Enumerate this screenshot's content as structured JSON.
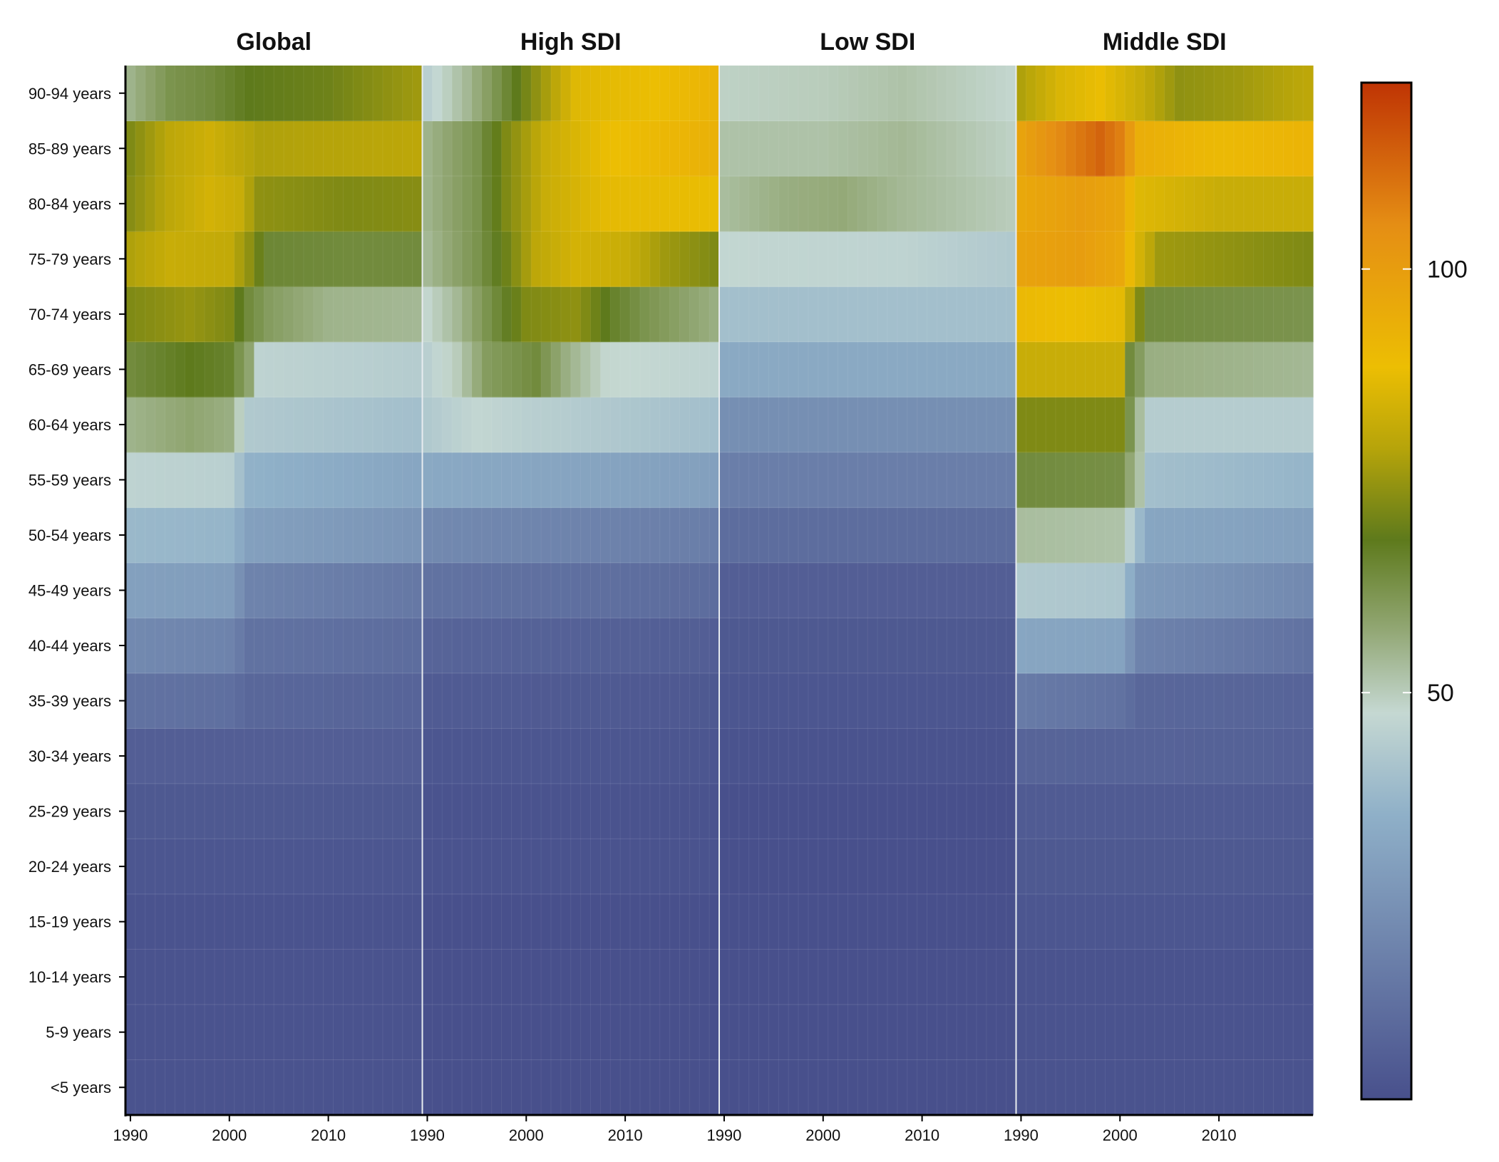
{
  "chart_data": {
    "type": "heatmap",
    "title": "",
    "xlabel": "",
    "ylabel": "",
    "facets": [
      "Global",
      "High SDI",
      "Low SDI",
      "Middle SDI"
    ],
    "x_ticks": [
      1990,
      2000,
      2010
    ],
    "x_range": [
      1990,
      2019
    ],
    "y_categories": [
      "<5 years",
      "5-9 years",
      "10-14 years",
      "15-19 years",
      "20-24 years",
      "25-29 years",
      "30-34 years",
      "35-39 years",
      "40-44 years",
      "45-49 years",
      "50-54 years",
      "55-59 years",
      "60-64 years",
      "65-69 years",
      "70-74 years",
      "75-79 years",
      "80-84 years",
      "85-89 years",
      "90-94 years"
    ],
    "colorbar": {
      "ticks": [
        50,
        100
      ],
      "range": [
        2,
        122
      ],
      "colors": [
        "#48508c",
        "#8fb0c8",
        "#c5d8d2",
        "#93a876",
        "#5e7a1c",
        "#b6a40a",
        "#ecbe03",
        "#e58e14",
        "#bf3404"
      ],
      "stops": [
        0.0,
        0.28,
        0.38,
        0.46,
        0.55,
        0.64,
        0.72,
        0.86,
        1.0
      ]
    },
    "cell_values": {
      "Global": {
        "<5 years": [
          [
            1990,
            3
          ],
          [
            2019,
            3
          ]
        ],
        "5-9 years": [
          [
            1990,
            3
          ],
          [
            2019,
            3
          ]
        ],
        "10-14 years": [
          [
            1990,
            3
          ],
          [
            2019,
            3
          ]
        ],
        "15-19 years": [
          [
            1990,
            3
          ],
          [
            2019,
            3
          ]
        ],
        "20-24 years": [
          [
            1990,
            4
          ],
          [
            2019,
            4
          ]
        ],
        "25-29 years": [
          [
            1990,
            5
          ],
          [
            2019,
            5
          ]
        ],
        "30-34 years": [
          [
            1990,
            7
          ],
          [
            2019,
            7
          ]
        ],
        "35-39 years": [
          [
            1990,
            14
          ],
          [
            2000,
            13
          ],
          [
            2002,
            10
          ],
          [
            2019,
            9
          ]
        ],
        "40-44 years": [
          [
            1990,
            22
          ],
          [
            2000,
            20
          ],
          [
            2002,
            14
          ],
          [
            2019,
            12
          ]
        ],
        "45-49 years": [
          [
            1990,
            30
          ],
          [
            2000,
            29
          ],
          [
            2002,
            20
          ],
          [
            2019,
            16
          ]
        ],
        "50-54 years": [
          [
            1990,
            38
          ],
          [
            2000,
            37
          ],
          [
            2002,
            30
          ],
          [
            2019,
            26
          ]
        ],
        "55-59 years": [
          [
            1990,
            46
          ],
          [
            2000,
            45
          ],
          [
            2002,
            36
          ],
          [
            2019,
            32
          ]
        ],
        "60-64 years": [
          [
            1990,
            55
          ],
          [
            1996,
            58
          ],
          [
            2000,
            56
          ],
          [
            2002,
            43
          ],
          [
            2019,
            40
          ]
        ],
        "65-69 years": [
          [
            1990,
            64
          ],
          [
            1996,
            68
          ],
          [
            2000,
            66
          ],
          [
            2002,
            58
          ],
          [
            2003,
            46
          ],
          [
            2019,
            44
          ]
        ],
        "70-74 years": [
          [
            1990,
            72
          ],
          [
            1996,
            75
          ],
          [
            2000,
            72
          ],
          [
            2002,
            64
          ],
          [
            2004,
            60
          ],
          [
            2010,
            55
          ],
          [
            2019,
            54
          ]
        ],
        "75-79 years": [
          [
            1990,
            78
          ],
          [
            1994,
            82
          ],
          [
            2000,
            81
          ],
          [
            2002,
            74
          ],
          [
            2004,
            65
          ],
          [
            2012,
            64
          ],
          [
            2019,
            64
          ]
        ],
        "80-84 years": [
          [
            1990,
            73
          ],
          [
            1994,
            80
          ],
          [
            1998,
            84
          ],
          [
            2001,
            82
          ],
          [
            2003,
            74
          ],
          [
            2012,
            72
          ],
          [
            2019,
            73
          ]
        ],
        "85-89 years": [
          [
            1990,
            72
          ],
          [
            1994,
            80
          ],
          [
            1998,
            83
          ],
          [
            2003,
            78
          ],
          [
            2012,
            79
          ],
          [
            2019,
            80
          ]
        ],
        "90-94 years": [
          [
            1990,
            55
          ],
          [
            1994,
            62
          ],
          [
            1998,
            64
          ],
          [
            2002,
            68
          ],
          [
            2010,
            70
          ],
          [
            2019,
            76
          ]
        ]
      },
      "High SDI": {
        "<5 years": [
          [
            1990,
            2
          ],
          [
            2019,
            2
          ]
        ],
        "5-9 years": [
          [
            1990,
            2
          ],
          [
            2019,
            2
          ]
        ],
        "10-14 years": [
          [
            1990,
            2
          ],
          [
            2019,
            2
          ]
        ],
        "15-19 years": [
          [
            1990,
            2
          ],
          [
            2019,
            2
          ]
        ],
        "20-24 years": [
          [
            1990,
            3
          ],
          [
            2019,
            3
          ]
        ],
        "25-29 years": [
          [
            1990,
            3
          ],
          [
            2019,
            3
          ]
        ],
        "30-34 years": [
          [
            1990,
            4
          ],
          [
            2019,
            4
          ]
        ],
        "35-39 years": [
          [
            1990,
            6
          ],
          [
            2019,
            5
          ]
        ],
        "40-44 years": [
          [
            1990,
            9
          ],
          [
            2019,
            7
          ]
        ],
        "45-49 years": [
          [
            1990,
            14
          ],
          [
            2019,
            12
          ]
        ],
        "50-54 years": [
          [
            1990,
            22
          ],
          [
            2019,
            18
          ]
        ],
        "55-59 years": [
          [
            1990,
            33
          ],
          [
            2019,
            30
          ]
        ],
        "60-64 years": [
          [
            1990,
            43
          ],
          [
            1995,
            47
          ],
          [
            2000,
            45
          ],
          [
            2019,
            40
          ]
        ],
        "65-69 years": [
          [
            1990,
            45
          ],
          [
            1993,
            50
          ],
          [
            1996,
            60
          ],
          [
            2001,
            64
          ],
          [
            2004,
            56
          ],
          [
            2008,
            48
          ],
          [
            2019,
            46
          ]
        ],
        "70-74 years": [
          [
            1990,
            48
          ],
          [
            1993,
            54
          ],
          [
            1996,
            62
          ],
          [
            2000,
            72
          ],
          [
            2005,
            74
          ],
          [
            2009,
            66
          ],
          [
            2012,
            62
          ],
          [
            2019,
            56
          ]
        ],
        "75-79 years": [
          [
            1990,
            54
          ],
          [
            1995,
            62
          ],
          [
            1998,
            70
          ],
          [
            2001,
            80
          ],
          [
            2005,
            84
          ],
          [
            2010,
            82
          ],
          [
            2014,
            76
          ],
          [
            2019,
            72
          ]
        ],
        "80-84 years": [
          [
            1990,
            55
          ],
          [
            1995,
            62
          ],
          [
            1998,
            72
          ],
          [
            2002,
            82
          ],
          [
            2008,
            87
          ],
          [
            2019,
            88
          ]
        ],
        "85-89 years": [
          [
            1990,
            55
          ],
          [
            1995,
            62
          ],
          [
            1998,
            72
          ],
          [
            2002,
            82
          ],
          [
            2008,
            88
          ],
          [
            2019,
            93
          ]
        ],
        "90-94 years": [
          [
            1990,
            45
          ],
          [
            1994,
            54
          ],
          [
            1997,
            62
          ],
          [
            2001,
            74
          ],
          [
            2005,
            86
          ],
          [
            2012,
            88
          ],
          [
            2019,
            92
          ]
        ]
      },
      "Low SDI": {
        "<5 years": [
          [
            1990,
            2
          ],
          [
            2019,
            2
          ]
        ],
        "5-9 years": [
          [
            1990,
            2
          ],
          [
            2019,
            2
          ]
        ],
        "10-14 years": [
          [
            1990,
            2
          ],
          [
            2019,
            2
          ]
        ],
        "15-19 years": [
          [
            1990,
            2
          ],
          [
            2019,
            2
          ]
        ],
        "20-24 years": [
          [
            1990,
            2
          ],
          [
            2019,
            2
          ]
        ],
        "25-29 years": [
          [
            1990,
            2
          ],
          [
            2019,
            2
          ]
        ],
        "30-34 years": [
          [
            1990,
            3
          ],
          [
            2019,
            3
          ]
        ],
        "35-39 years": [
          [
            1990,
            4
          ],
          [
            2019,
            4
          ]
        ],
        "40-44 years": [
          [
            1990,
            5
          ],
          [
            2019,
            5
          ]
        ],
        "45-49 years": [
          [
            1990,
            7
          ],
          [
            2019,
            7
          ]
        ],
        "50-54 years": [
          [
            1990,
            12
          ],
          [
            2019,
            12
          ]
        ],
        "55-59 years": [
          [
            1990,
            18
          ],
          [
            2019,
            18
          ]
        ],
        "60-64 years": [
          [
            1990,
            24
          ],
          [
            2019,
            24
          ]
        ],
        "65-69 years": [
          [
            1990,
            33
          ],
          [
            2019,
            33
          ]
        ],
        "70-74 years": [
          [
            1990,
            40
          ],
          [
            2019,
            40
          ]
        ],
        "75-79 years": [
          [
            1990,
            47
          ],
          [
            2008,
            46
          ],
          [
            2019,
            43
          ]
        ],
        "80-84 years": [
          [
            1990,
            53
          ],
          [
            1996,
            56
          ],
          [
            2002,
            57
          ],
          [
            2008,
            54
          ],
          [
            2019,
            50
          ]
        ],
        "85-89 years": [
          [
            1990,
            52
          ],
          [
            2000,
            52
          ],
          [
            2008,
            54
          ],
          [
            2019,
            49
          ]
        ],
        "90-94 years": [
          [
            1990,
            49
          ],
          [
            2000,
            50
          ],
          [
            2008,
            52
          ],
          [
            2019,
            48
          ]
        ]
      },
      "Middle SDI": {
        "<5 years": [
          [
            1990,
            3
          ],
          [
            2019,
            3
          ]
        ],
        "5-9 years": [
          [
            1990,
            3
          ],
          [
            2019,
            3
          ]
        ],
        "10-14 years": [
          [
            1990,
            3
          ],
          [
            2019,
            3
          ]
        ],
        "15-19 years": [
          [
            1990,
            4
          ],
          [
            2019,
            4
          ]
        ],
        "20-24 years": [
          [
            1990,
            5
          ],
          [
            2019,
            5
          ]
        ],
        "25-29 years": [
          [
            1990,
            6
          ],
          [
            2019,
            6
          ]
        ],
        "30-34 years": [
          [
            1990,
            9
          ],
          [
            2019,
            8
          ]
        ],
        "35-39 years": [
          [
            1990,
            17
          ],
          [
            2000,
            14
          ],
          [
            2002,
            10
          ],
          [
            2019,
            9
          ]
        ],
        "40-44 years": [
          [
            1990,
            32
          ],
          [
            2000,
            31
          ],
          [
            2002,
            20
          ],
          [
            2019,
            14
          ]
        ],
        "45-49 years": [
          [
            1990,
            43
          ],
          [
            2000,
            42
          ],
          [
            2002,
            28
          ],
          [
            2019,
            22
          ]
        ],
        "50-54 years": [
          [
            1990,
            53
          ],
          [
            2000,
            52
          ],
          [
            2002,
            38
          ],
          [
            2003,
            32
          ],
          [
            2019,
            30
          ]
        ],
        "55-59 years": [
          [
            1990,
            64
          ],
          [
            2000,
            63
          ],
          [
            2002,
            52
          ],
          [
            2003,
            40
          ],
          [
            2019,
            37
          ]
        ],
        "60-64 years": [
          [
            1990,
            72
          ],
          [
            2000,
            72
          ],
          [
            2001,
            62
          ],
          [
            2003,
            44
          ],
          [
            2019,
            44
          ]
        ],
        "65-69 years": [
          [
            1990,
            82
          ],
          [
            2000,
            82
          ],
          [
            2001,
            64
          ],
          [
            2003,
            56
          ],
          [
            2019,
            54
          ]
        ],
        "70-74 years": [
          [
            1990,
            90
          ],
          [
            2000,
            87
          ],
          [
            2001,
            80
          ],
          [
            2003,
            64
          ],
          [
            2019,
            62
          ]
        ],
        "75-79 years": [
          [
            1990,
            98
          ],
          [
            1996,
            100
          ],
          [
            2000,
            96
          ],
          [
            2002,
            84
          ],
          [
            2004,
            76
          ],
          [
            2019,
            72
          ]
        ],
        "80-84 years": [
          [
            1990,
            96
          ],
          [
            1996,
            100
          ],
          [
            2000,
            97
          ],
          [
            2002,
            86
          ],
          [
            2010,
            82
          ],
          [
            2019,
            82
          ]
        ],
        "85-89 years": [
          [
            1990,
            98
          ],
          [
            1994,
            106
          ],
          [
            1998,
            113
          ],
          [
            2000,
            108
          ],
          [
            2002,
            94
          ],
          [
            2010,
            90
          ],
          [
            2019,
            92
          ]
        ],
        "90-94 years": [
          [
            1990,
            78
          ],
          [
            1994,
            85
          ],
          [
            1998,
            88
          ],
          [
            2002,
            82
          ],
          [
            2006,
            74
          ],
          [
            2012,
            76
          ],
          [
            2019,
            80
          ]
        ]
      }
    }
  }
}
